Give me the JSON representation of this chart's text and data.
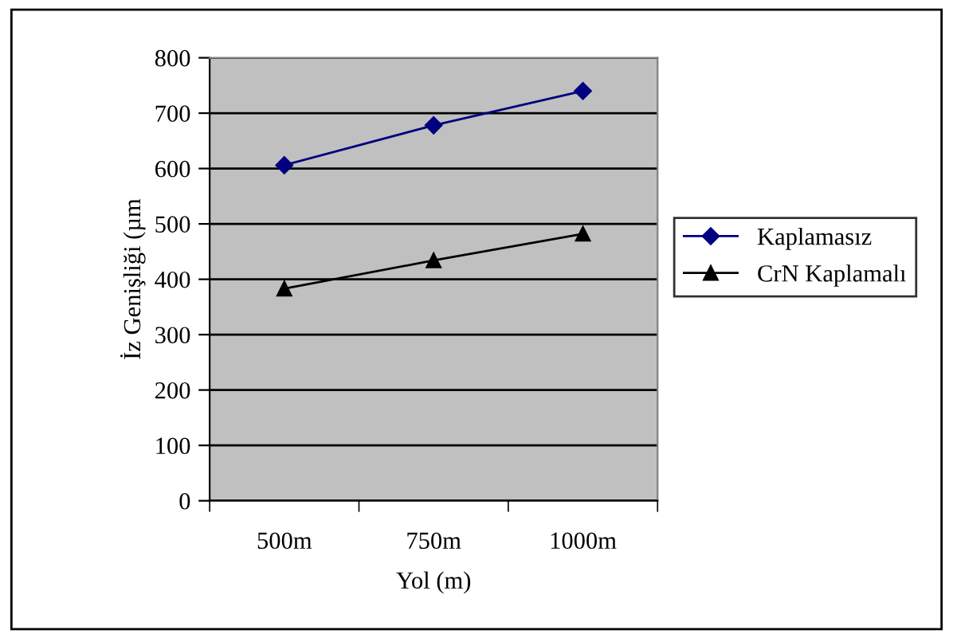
{
  "chart_data": {
    "type": "line",
    "xlabel": "Yol (m)",
    "ylabel": "İz Genişliği (µm",
    "categories": [
      "500m",
      "750m",
      "1000m"
    ],
    "series": [
      {
        "name": "Kaplamasız",
        "color": "#000080",
        "marker": "diamond",
        "values": [
          606,
          678,
          740
        ]
      },
      {
        "name": "CrN Kaplamalı",
        "color": "#000000",
        "marker": "triangle",
        "values": [
          383,
          434,
          482
        ]
      }
    ],
    "ylim": [
      0,
      800
    ],
    "yticks": [
      0,
      100,
      200,
      300,
      400,
      500,
      600,
      700,
      800
    ],
    "grid": "y",
    "legend": "right",
    "line_style": "solid"
  }
}
